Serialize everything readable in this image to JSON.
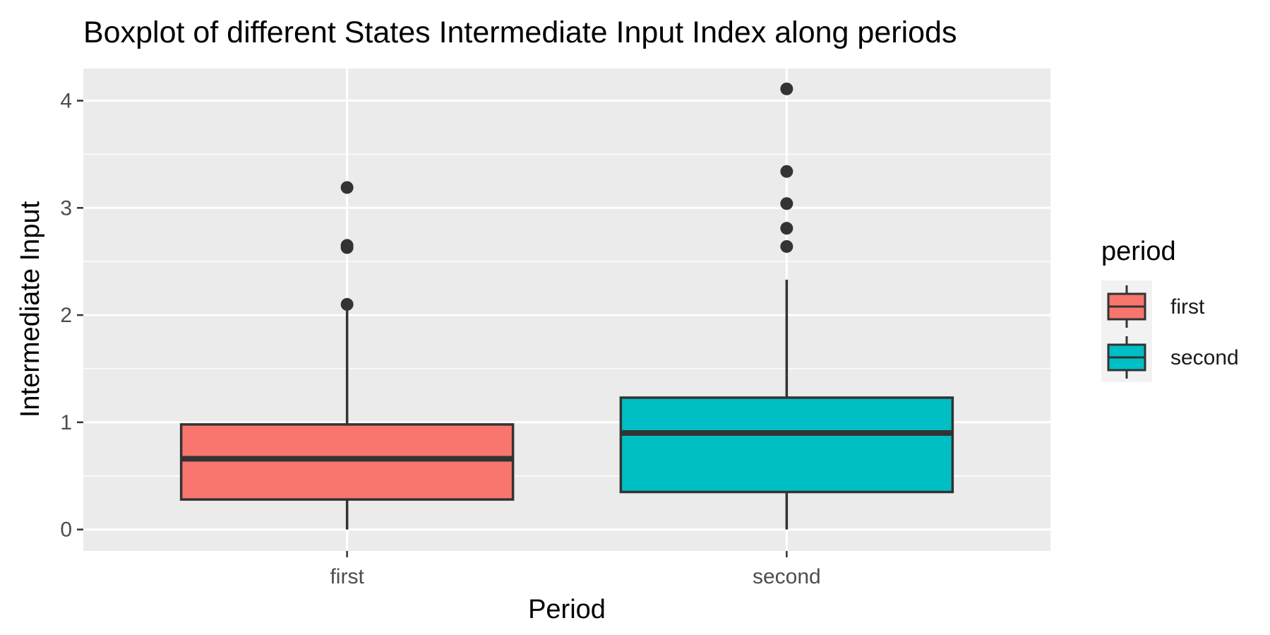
{
  "chart_data": {
    "type": "boxplot",
    "title": "Boxplot of different States Intermediate Input Index along periods",
    "xlabel": "Period",
    "ylabel": "Intermediate Input",
    "categories": [
      "first",
      "second"
    ],
    "ylim": [
      -0.2,
      4.3
    ],
    "yticks": [
      0,
      1,
      2,
      3,
      4
    ],
    "grid": true,
    "panel_background": "#ebebeb",
    "legend": {
      "title": "period",
      "position": "right",
      "entries": [
        "first",
        "second"
      ]
    },
    "series": [
      {
        "category": "first",
        "color": "#f8766d",
        "whisker_low": 0.0,
        "q1": 0.28,
        "median": 0.66,
        "q3": 0.98,
        "whisker_high": 2.05,
        "outliers": [
          2.1,
          2.63,
          2.65,
          3.19
        ]
      },
      {
        "category": "second",
        "color": "#00bfc4",
        "whisker_low": 0.0,
        "q1": 0.35,
        "median": 0.9,
        "q3": 1.23,
        "whisker_high": 2.33,
        "outliers": [
          2.64,
          2.81,
          3.04,
          3.34,
          4.11
        ]
      }
    ]
  }
}
